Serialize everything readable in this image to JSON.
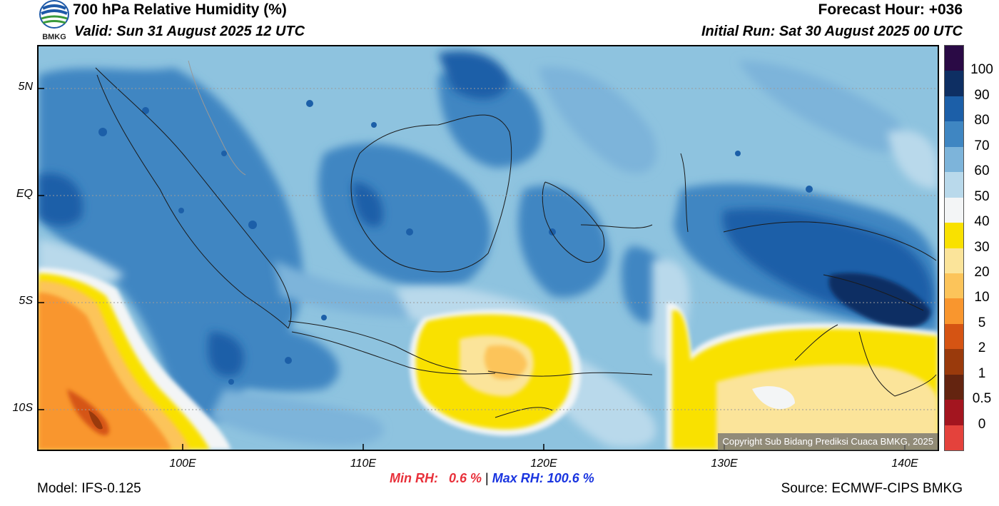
{
  "header": {
    "title": "700 hPa Relative Humidity (%)",
    "valid": "Valid: Sun 31 August 2025 12 UTC",
    "forecast_hour": "Forecast Hour: +036",
    "initial_run": "Initial Run: Sat 30 August 2025 00 UTC"
  },
  "logo": {
    "text": "BMKG"
  },
  "axes": {
    "lat_labels": [
      "5N",
      "EQ",
      "5S",
      "10S"
    ],
    "lon_labels": [
      "100E",
      "110E",
      "120E",
      "130E",
      "140E"
    ]
  },
  "stats": {
    "min_rh": "Min RH:   0.6 %",
    "separator": "|",
    "max_rh": "Max RH: 100.6 %"
  },
  "copyright": "Copyright Sub Bidang Prediksi Cuaca BMKG, 2025",
  "footer": {
    "model": "Model: IFS-0.125",
    "source": "Source: ECMWF-CIPS BMKG"
  },
  "colorbar": {
    "labels": [
      "100",
      "90",
      "80",
      "70",
      "60",
      "50",
      "40",
      "30",
      "20",
      "10",
      "5",
      "2",
      "1",
      "0.5",
      "0"
    ],
    "colors": [
      "#2a0a45",
      "#0e2f63",
      "#1c5fa8",
      "#3f86c2",
      "#7db4da",
      "#b9d9eb",
      "#f3f5f6",
      "#f9e100",
      "#fbe49a",
      "#fcc45a",
      "#f9962e",
      "#d55413",
      "#9a3a0c",
      "#642410",
      "#a3151f",
      "#e4423c"
    ]
  }
}
